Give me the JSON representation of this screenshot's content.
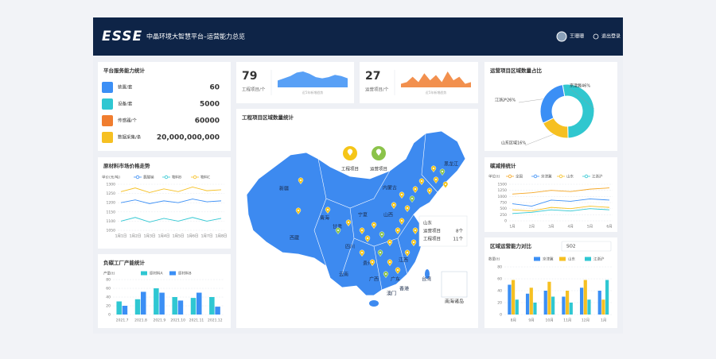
{
  "header": {
    "logo": "ESSE",
    "title": "中晶环境大智慧平台–运营能力总览",
    "user": "王珊珊",
    "logout": "退出登录"
  },
  "service_stats": {
    "title": "平台服务能力统计",
    "items": [
      {
        "label": "装置/套",
        "value": "60"
      },
      {
        "label": "设备/套",
        "value": "5000"
      },
      {
        "label": "传感器/个",
        "value": "60000"
      },
      {
        "label": "数据采集/条",
        "value": "20,000,000,000"
      }
    ]
  },
  "kpis": [
    {
      "value": 79,
      "label": "工程项目/个",
      "note": "近5年新增趋势",
      "color": "#3b8ff5",
      "trend": [
        3,
        4,
        5,
        6.5,
        7,
        6,
        4.5,
        4,
        4.5,
        5.5,
        5,
        4
      ]
    },
    {
      "value": 27,
      "label": "运营项目/个",
      "note": "近5年新增趋势",
      "color": "#f07d2f",
      "trend": [
        2,
        3,
        6,
        3,
        8,
        4,
        7,
        3,
        9,
        4,
        6,
        2,
        3
      ]
    }
  ],
  "map": {
    "title": "工程项目区域数量统计",
    "legend": [
      "工程项目",
      "运营项目"
    ],
    "regions": [
      "新疆",
      "西藏",
      "青海",
      "甘肃",
      "内蒙古",
      "黑龙江",
      "宁夏",
      "山西",
      "四川",
      "贵州",
      "云南",
      "广西",
      "广东",
      "澳门",
      "香港",
      "台湾",
      "江西",
      "南海诸岛"
    ],
    "tooltip": {
      "title": "山东",
      "rows": [
        {
          "label": "运营项目",
          "value": "8个"
        },
        {
          "label": "工程项目",
          "value": "11个"
        }
      ]
    }
  },
  "chart_data": [
    {
      "type": "line",
      "title": "原材料市场价格走势",
      "y_label": "单价(元/吨)",
      "categories": [
        "1月1日",
        "1月2日",
        "1月3日",
        "1月4日",
        "1月5日",
        "1月6日",
        "1月7日",
        "1月8日"
      ],
      "series": [
        {
          "name": "氯酸钠",
          "color": "#3b8ff5",
          "values": [
            1200,
            1215,
            1195,
            1210,
            1200,
            1220,
            1205,
            1210
          ]
        },
        {
          "name": "物料B",
          "color": "#2fc7d2",
          "values": [
            1100,
            1120,
            1095,
            1115,
            1100,
            1120,
            1100,
            1115
          ]
        },
        {
          "name": "物料C",
          "color": "#f6c022",
          "values": [
            1260,
            1280,
            1255,
            1275,
            1260,
            1285,
            1265,
            1270
          ]
        }
      ],
      "ylim": [
        1050,
        1300
      ],
      "yticks": [
        1050,
        1100,
        1150,
        1200,
        1250,
        1300
      ],
      "grid": true
    },
    {
      "type": "bar",
      "title": "负碳工厂产能统计",
      "y_label": "产量(t)",
      "categories": [
        "2021.7",
        "2021.8",
        "2021.9",
        "2021.10",
        "2021.11",
        "2021.12"
      ],
      "series": [
        {
          "name": "原材料A",
          "color": "#2fc7d2",
          "values": [
            30,
            35,
            60,
            40,
            38,
            40
          ]
        },
        {
          "name": "原材料B",
          "color": "#3b8ff5",
          "values": [
            20,
            52,
            50,
            32,
            50,
            18
          ]
        }
      ],
      "ylim": [
        0,
        80
      ],
      "yticks": [
        0,
        20,
        40,
        60,
        80
      ],
      "grid": true
    },
    {
      "type": "pie",
      "title": "运营项目区域数量占比",
      "values": [
        46,
        16,
        26
      ],
      "value_labels": [
        "京津冀46%",
        "山东区域16%",
        "江浙沪26%"
      ],
      "colors": [
        "#30c7cf",
        "#f6c022",
        "#3b8ff5"
      ]
    },
    {
      "type": "line",
      "title": "碳减排统计",
      "y_label": "单位(t)",
      "categories": [
        "1月",
        "2月",
        "3月",
        "4月",
        "5月",
        "6月"
      ],
      "series": [
        {
          "name": "全国",
          "color": "#f5a623",
          "values": [
            1100,
            1150,
            1250,
            1200,
            1300,
            1350
          ]
        },
        {
          "name": "京津冀",
          "color": "#3b8ff5",
          "values": [
            700,
            600,
            850,
            800,
            900,
            850
          ]
        },
        {
          "name": "山东",
          "color": "#f6c022",
          "values": [
            450,
            400,
            550,
            500,
            600,
            550
          ]
        },
        {
          "name": "江浙沪",
          "color": "#2fc7d2",
          "values": [
            300,
            350,
            450,
            400,
            500,
            450
          ]
        }
      ],
      "ylim": [
        0,
        1500
      ],
      "yticks": [
        0,
        250,
        500,
        750,
        1000,
        1250,
        1500
      ],
      "grid": true
    },
    {
      "type": "bar",
      "title": "区域运营能力对比",
      "y_label": "数量(t)",
      "selector": "SO2",
      "categories": [
        "8月",
        "9月",
        "10月",
        "11月",
        "12月",
        "1月"
      ],
      "series": [
        {
          "name": "京津冀",
          "color": "#3b8ff5",
          "values": [
            50,
            35,
            40,
            30,
            45,
            40
          ]
        },
        {
          "name": "山东",
          "color": "#f6c022",
          "values": [
            58,
            45,
            55,
            40,
            58,
            25
          ]
        },
        {
          "name": "江浙沪",
          "color": "#2fc7d2",
          "values": [
            25,
            20,
            30,
            20,
            25,
            58
          ]
        }
      ],
      "ylim": [
        0,
        80
      ],
      "yticks": [
        0,
        20,
        40,
        60,
        80
      ],
      "grid": true
    }
  ]
}
